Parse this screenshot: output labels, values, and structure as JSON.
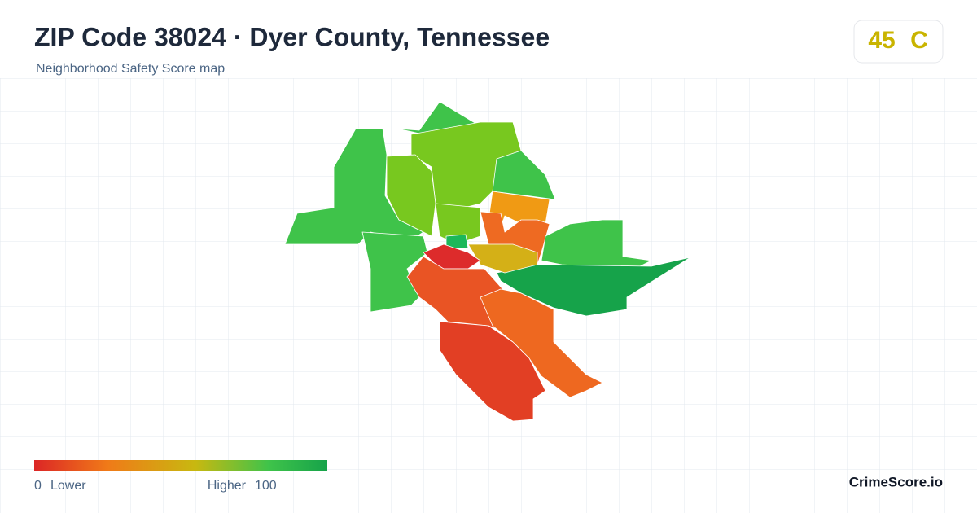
{
  "header": {
    "title": "ZIP Code 38024 · Dyer County, Tennessee",
    "subtitle": "Neighborhood Safety Score map"
  },
  "score": {
    "value": 45,
    "grade": "C"
  },
  "legend": {
    "min": 0,
    "min_label": "Lower",
    "max_label": "Higher",
    "max": 100
  },
  "brand": "CrimeScore.io"
}
